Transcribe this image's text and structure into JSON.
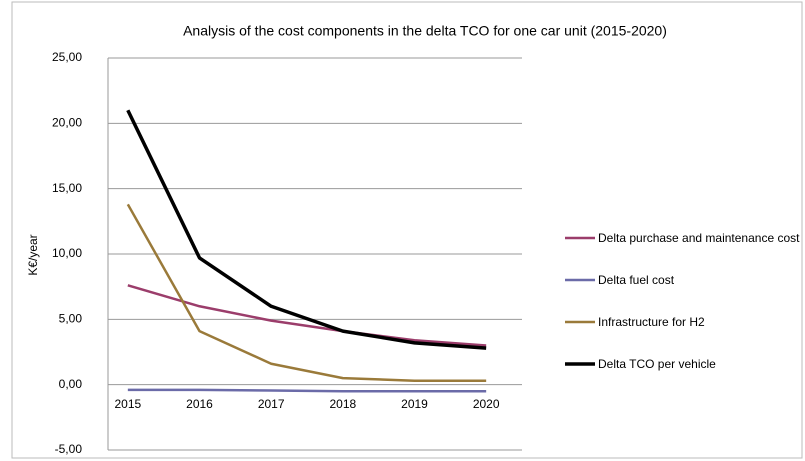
{
  "chart_data": {
    "type": "line",
    "title": "Analysis of the cost components in the delta TCO for one car unit (2015-2020)",
    "y_label": "K€/year",
    "categories": [
      "2015",
      "2016",
      "2017",
      "2018",
      "2019",
      "2020"
    ],
    "series": [
      {
        "name": "Delta purchase and maintenance cost",
        "color": "#9b3d6b",
        "values": [
          7.6,
          6.0,
          4.9,
          4.1,
          3.4,
          3.0
        ]
      },
      {
        "name": "Delta fuel cost",
        "color": "#6b6ba8",
        "values": [
          -0.4,
          -0.4,
          -0.45,
          -0.5,
          -0.5,
          -0.5
        ]
      },
      {
        "name": "Infrastructure for H2",
        "color": "#9a7a3a",
        "values": [
          13.8,
          4.1,
          1.6,
          0.5,
          0.3,
          0.3
        ]
      },
      {
        "name": "Delta TCO per vehicle",
        "color": "#000000",
        "values": [
          21.0,
          9.7,
          6.0,
          4.1,
          3.2,
          2.8
        ]
      }
    ],
    "ylim": [
      -5,
      25
    ],
    "yticks": [
      {
        "value": -5,
        "label": "-5,00"
      },
      {
        "value": 0,
        "label": "0,00"
      },
      {
        "value": 5,
        "label": "5,00"
      },
      {
        "value": 10,
        "label": "10,00"
      },
      {
        "value": 15,
        "label": "15,00"
      },
      {
        "value": 20,
        "label": "20,00"
      },
      {
        "value": 25,
        "label": "25,00"
      }
    ],
    "grid": true,
    "legend": "right"
  }
}
